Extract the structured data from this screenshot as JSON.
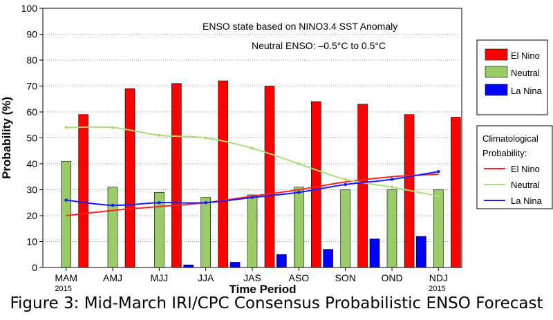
{
  "chart_data": {
    "type": "bar",
    "title": "",
    "annotations": [
      "ENSO state based on NINO3.4 SST Anomaly",
      "Neutral ENSO: –0.5°C to 0.5°C"
    ],
    "xlabel": "Time Period",
    "ylabel": "Probability (%)",
    "ylim": [
      0,
      100
    ],
    "yticks": [
      0,
      10,
      20,
      30,
      40,
      50,
      60,
      70,
      80,
      90,
      100
    ],
    "categories": [
      "MAM",
      "AMJ",
      "MJJ",
      "JJA",
      "JAS",
      "ASO",
      "SON",
      "OND",
      "NDJ"
    ],
    "year_labels": {
      "first": "2015",
      "last": "2015"
    },
    "grid": true,
    "series": [
      {
        "name": "La Nina",
        "color": "#0000ff",
        "values": [
          0,
          0,
          0,
          1,
          2,
          5,
          7,
          11,
          12
        ]
      },
      {
        "name": "Neutral",
        "color": "#99cc66",
        "values": [
          41,
          31,
          29,
          27,
          28,
          31,
          30,
          30,
          30
        ]
      },
      {
        "name": "El Nino",
        "color": "#ff0000",
        "values": [
          59,
          69,
          71,
          72,
          70,
          64,
          63,
          59,
          58
        ]
      }
    ],
    "legend": {
      "placement": "right",
      "entries": [
        "El Nino",
        "Neutral",
        "La Nina"
      ]
    },
    "climatology": {
      "title": "Climatological Probability:",
      "entries": [
        "El Nino",
        "Neutral",
        "La Nina"
      ],
      "lines": [
        {
          "name": "El Nino",
          "color": "#ff2020",
          "values": [
            20,
            22,
            23.5,
            25,
            27.5,
            30,
            33,
            35,
            36
          ]
        },
        {
          "name": "Neutral",
          "color": "#aadd77",
          "values": [
            54,
            54,
            51,
            50,
            46,
            40,
            34,
            31,
            27.5
          ]
        },
        {
          "name": "La Nina",
          "color": "#1a1aff",
          "values": [
            26,
            24,
            25,
            25,
            27,
            29,
            32,
            34,
            37
          ]
        }
      ]
    }
  },
  "caption": "Figure 3: Mid-March IRI/CPC Consensus Probabilistic ENSO Forecast"
}
